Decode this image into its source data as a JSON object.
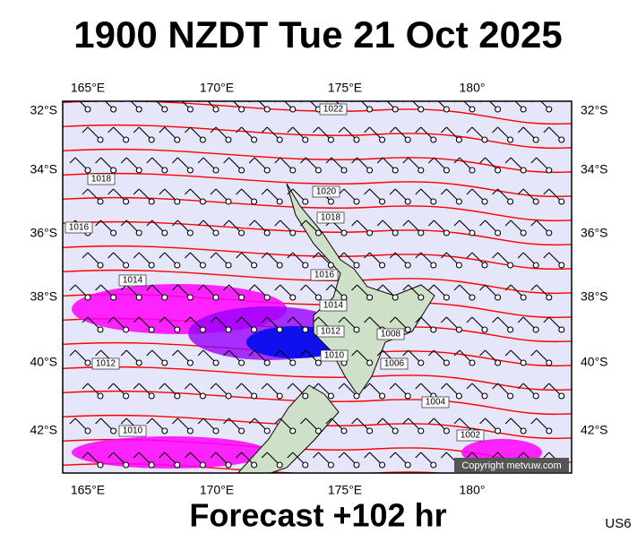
{
  "header": {
    "title": "1900 NZDT Tue 21 Oct 2025"
  },
  "map": {
    "lon_labels": [
      "165°E",
      "170°E",
      "175°E",
      "180°"
    ],
    "lat_labels": [
      "32°S",
      "34°S",
      "36°S",
      "38°S",
      "40°S",
      "42°S"
    ],
    "isobar_labels": [
      "1022",
      "1018",
      "1016",
      "1020",
      "1018",
      "1016",
      "1014",
      "1014",
      "1012",
      "1010",
      "1008",
      "1006",
      "1012",
      "1004",
      "1002",
      "1010"
    ],
    "copyright": "Copyright metvuw.com"
  },
  "footer": {
    "forecast": "Forecast +102 hr",
    "code": "US6"
  }
}
